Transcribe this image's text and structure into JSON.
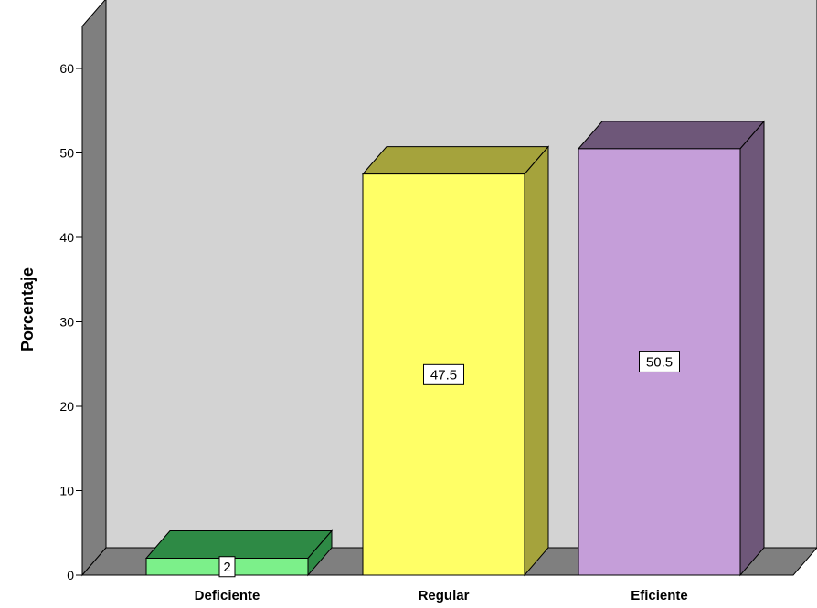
{
  "chart_data": {
    "type": "bar",
    "three_d": true,
    "categories": [
      "Deficiente",
      "Regular",
      "Eficiente"
    ],
    "values": [
      2,
      47.5,
      50.5
    ],
    "data_labels": [
      "2",
      "47.5",
      "50.5"
    ],
    "ylabel": "Porcentaje",
    "xlabel": "",
    "ylim": [
      0,
      65
    ],
    "yticks": [
      0,
      10,
      20,
      30,
      40,
      50,
      60
    ],
    "bar_colors": [
      {
        "front": "#7cf08a",
        "top": "#2e8a45",
        "side": "#2e8a45"
      },
      {
        "front": "#ffff66",
        "top": "#a5a33c",
        "side": "#a5a33c"
      },
      {
        "front": "#c59ed9",
        "top": "#6e5779",
        "side": "#6e5779"
      }
    ],
    "wall_color": "#d3d3d3",
    "left_wall_color": "#7f7f7f",
    "floor_color": "#7f7f7f",
    "grid": false,
    "legend": "none"
  }
}
